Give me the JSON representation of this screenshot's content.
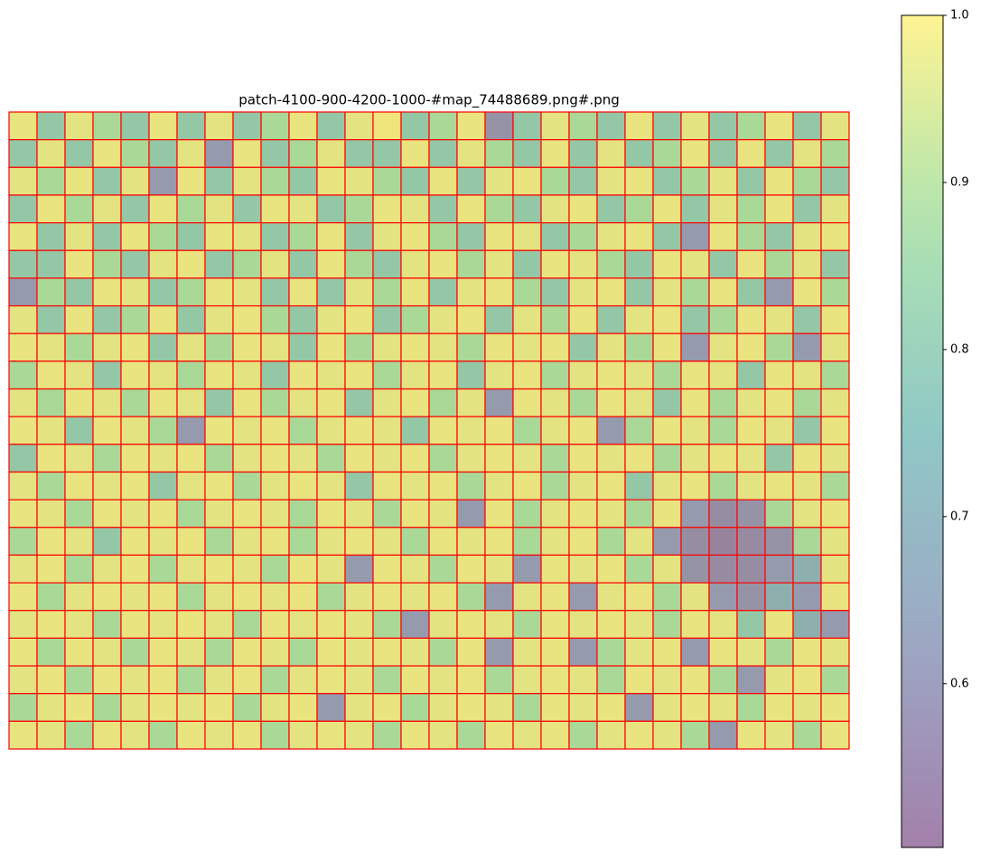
{
  "chart_data": {
    "type": "heatmap",
    "title": "patch-4100-900-4200-1000-#map_74488689.png#.png",
    "colormap": "viridis",
    "alpha": 0.5,
    "cell_edge_color": "#ff0000",
    "clim": [
      0.502,
      1.0
    ],
    "cticks": [
      0.6,
      0.7,
      0.8,
      0.9,
      {
        "value": 1.0,
        "label": "1.0"
      }
    ],
    "values": [
      [
        0.98,
        0.8,
        0.97,
        0.88,
        0.8,
        0.98,
        0.8,
        0.97,
        0.8,
        0.88,
        0.98,
        0.8,
        0.97,
        0.99,
        0.8,
        0.88,
        0.98,
        0.6,
        0.8,
        0.97,
        0.88,
        0.8,
        0.98,
        0.8,
        0.97,
        0.8,
        0.88,
        0.98,
        0.8,
        0.97
      ],
      [
        0.8,
        0.97,
        0.8,
        0.98,
        0.88,
        0.8,
        0.97,
        0.62,
        0.98,
        0.8,
        0.88,
        0.97,
        0.8,
        0.8,
        0.98,
        0.8,
        0.97,
        0.88,
        0.8,
        0.98,
        0.8,
        0.97,
        0.8,
        0.88,
        0.98,
        0.8,
        0.98,
        0.8,
        0.97,
        0.88
      ],
      [
        0.97,
        0.88,
        0.98,
        0.8,
        0.97,
        0.62,
        0.98,
        0.8,
        0.97,
        0.88,
        0.8,
        0.98,
        0.97,
        0.88,
        0.8,
        0.98,
        0.8,
        0.97,
        0.98,
        0.88,
        0.8,
        0.97,
        0.98,
        0.8,
        0.88,
        0.97,
        0.8,
        0.98,
        0.88,
        0.8
      ],
      [
        0.8,
        0.98,
        0.88,
        0.97,
        0.8,
        0.98,
        0.88,
        0.97,
        0.8,
        0.98,
        0.97,
        0.8,
        0.88,
        0.98,
        0.97,
        0.8,
        0.98,
        0.88,
        0.8,
        0.97,
        0.98,
        0.8,
        0.88,
        0.98,
        0.8,
        0.97,
        0.88,
        0.98,
        0.8,
        0.97
      ],
      [
        0.98,
        0.8,
        0.97,
        0.8,
        0.98,
        0.88,
        0.8,
        0.98,
        0.97,
        0.8,
        0.88,
        0.98,
        0.8,
        0.97,
        0.98,
        0.88,
        0.8,
        0.98,
        0.97,
        0.8,
        0.88,
        0.97,
        0.98,
        0.8,
        0.62,
        0.98,
        0.88,
        0.8,
        0.97,
        0.98
      ],
      [
        0.8,
        0.8,
        0.98,
        0.88,
        0.8,
        0.97,
        0.98,
        0.8,
        0.88,
        0.97,
        0.8,
        0.98,
        0.88,
        0.8,
        0.97,
        0.98,
        0.88,
        0.97,
        0.8,
        0.98,
        0.97,
        0.88,
        0.8,
        0.98,
        0.97,
        0.8,
        0.98,
        0.88,
        0.97,
        0.8
      ],
      [
        0.62,
        0.88,
        0.8,
        0.98,
        0.97,
        0.8,
        0.88,
        0.98,
        0.97,
        0.8,
        0.98,
        0.8,
        0.97,
        0.88,
        0.98,
        0.8,
        0.97,
        0.98,
        0.88,
        0.8,
        0.97,
        0.98,
        0.8,
        0.97,
        0.88,
        0.98,
        0.8,
        0.62,
        0.98,
        0.88
      ],
      [
        0.97,
        0.8,
        0.98,
        0.8,
        0.88,
        0.98,
        0.8,
        0.97,
        0.98,
        0.88,
        0.8,
        0.97,
        0.98,
        0.8,
        0.88,
        0.97,
        0.98,
        0.8,
        0.97,
        0.88,
        0.98,
        0.8,
        0.97,
        0.98,
        0.8,
        0.88,
        0.98,
        0.97,
        0.8,
        0.98
      ],
      [
        0.98,
        0.97,
        0.88,
        0.97,
        0.98,
        0.8,
        0.97,
        0.88,
        0.98,
        0.97,
        0.8,
        0.98,
        0.88,
        0.97,
        0.98,
        0.97,
        0.88,
        0.98,
        0.97,
        0.98,
        0.8,
        0.97,
        0.88,
        0.98,
        0.62,
        0.97,
        0.98,
        0.88,
        0.62,
        0.97
      ],
      [
        0.88,
        0.98,
        0.97,
        0.8,
        0.98,
        0.97,
        0.88,
        0.98,
        0.97,
        0.8,
        0.98,
        0.97,
        0.98,
        0.88,
        0.97,
        0.98,
        0.8,
        0.97,
        0.98,
        0.88,
        0.97,
        0.98,
        0.97,
        0.88,
        0.98,
        0.97,
        0.8,
        0.98,
        0.97,
        0.88
      ],
      [
        0.97,
        0.88,
        0.98,
        0.97,
        0.88,
        0.98,
        0.97,
        0.8,
        0.98,
        0.88,
        0.97,
        0.98,
        0.8,
        0.97,
        0.98,
        0.88,
        0.97,
        0.62,
        0.98,
        0.97,
        0.88,
        0.98,
        0.97,
        0.8,
        0.98,
        0.88,
        0.97,
        0.98,
        0.88,
        0.97
      ],
      [
        0.98,
        0.97,
        0.8,
        0.98,
        0.97,
        0.88,
        0.62,
        0.98,
        0.97,
        0.98,
        0.88,
        0.97,
        0.98,
        0.97,
        0.8,
        0.98,
        0.97,
        0.98,
        0.88,
        0.97,
        0.98,
        0.62,
        0.88,
        0.98,
        0.97,
        0.88,
        0.98,
        0.97,
        0.8,
        0.98
      ],
      [
        0.8,
        0.98,
        0.97,
        0.88,
        0.98,
        0.97,
        0.98,
        0.88,
        0.97,
        0.98,
        0.97,
        0.88,
        0.98,
        0.97,
        0.98,
        0.88,
        0.97,
        0.98,
        0.97,
        0.88,
        0.98,
        0.97,
        0.98,
        0.88,
        0.97,
        0.98,
        0.97,
        0.8,
        0.98,
        0.97
      ],
      [
        0.97,
        0.88,
        0.98,
        0.97,
        0.98,
        0.8,
        0.97,
        0.98,
        0.88,
        0.97,
        0.98,
        0.97,
        0.8,
        0.98,
        0.97,
        0.98,
        0.88,
        0.97,
        0.98,
        0.88,
        0.97,
        0.98,
        0.8,
        0.97,
        0.98,
        0.88,
        0.97,
        0.98,
        0.97,
        0.88
      ],
      [
        0.98,
        0.97,
        0.88,
        0.98,
        0.97,
        0.98,
        0.88,
        0.97,
        0.98,
        0.97,
        0.88,
        0.98,
        0.97,
        0.88,
        0.98,
        0.97,
        0.62,
        0.98,
        0.88,
        0.97,
        0.98,
        0.97,
        0.88,
        0.98,
        0.62,
        0.58,
        0.6,
        0.88,
        0.97,
        0.98
      ],
      [
        0.88,
        0.98,
        0.97,
        0.8,
        0.98,
        0.97,
        0.98,
        0.88,
        0.97,
        0.98,
        0.88,
        0.97,
        0.98,
        0.97,
        0.88,
        0.98,
        0.97,
        0.98,
        0.88,
        0.97,
        0.98,
        0.88,
        0.97,
        0.62,
        0.58,
        0.55,
        0.57,
        0.6,
        0.88,
        0.97
      ],
      [
        0.97,
        0.98,
        0.88,
        0.97,
        0.98,
        0.88,
        0.97,
        0.98,
        0.97,
        0.88,
        0.98,
        0.97,
        0.62,
        0.98,
        0.97,
        0.88,
        0.98,
        0.97,
        0.62,
        0.98,
        0.97,
        0.98,
        0.88,
        0.97,
        0.6,
        0.57,
        0.58,
        0.62,
        0.7,
        0.97
      ],
      [
        0.98,
        0.88,
        0.97,
        0.98,
        0.97,
        0.98,
        0.88,
        0.97,
        0.98,
        0.97,
        0.98,
        0.88,
        0.97,
        0.98,
        0.97,
        0.98,
        0.88,
        0.62,
        0.97,
        0.98,
        0.62,
        0.97,
        0.98,
        0.88,
        0.97,
        0.62,
        0.6,
        0.7,
        0.62,
        0.98
      ],
      [
        0.97,
        0.98,
        0.97,
        0.88,
        0.98,
        0.97,
        0.98,
        0.97,
        0.88,
        0.98,
        0.97,
        0.98,
        0.97,
        0.88,
        0.62,
        0.97,
        0.98,
        0.97,
        0.88,
        0.98,
        0.97,
        0.98,
        0.97,
        0.88,
        0.98,
        0.97,
        0.8,
        0.98,
        0.7,
        0.62
      ],
      [
        0.98,
        0.88,
        0.98,
        0.97,
        0.88,
        0.98,
        0.97,
        0.88,
        0.98,
        0.97,
        0.88,
        0.98,
        0.97,
        0.98,
        0.97,
        0.88,
        0.98,
        0.62,
        0.97,
        0.98,
        0.62,
        0.88,
        0.97,
        0.98,
        0.62,
        0.98,
        0.97,
        0.88,
        0.98,
        0.97
      ],
      [
        0.97,
        0.98,
        0.88,
        0.98,
        0.97,
        0.98,
        0.88,
        0.97,
        0.98,
        0.88,
        0.97,
        0.98,
        0.97,
        0.88,
        0.98,
        0.97,
        0.98,
        0.88,
        0.97,
        0.98,
        0.97,
        0.88,
        0.98,
        0.97,
        0.98,
        0.88,
        0.62,
        0.97,
        0.98,
        0.88
      ],
      [
        0.88,
        0.97,
        0.98,
        0.88,
        0.97,
        0.98,
        0.97,
        0.98,
        0.88,
        0.97,
        0.98,
        0.62,
        0.97,
        0.98,
        0.88,
        0.97,
        0.98,
        0.97,
        0.88,
        0.98,
        0.97,
        0.98,
        0.62,
        0.97,
        0.98,
        0.97,
        0.88,
        0.98,
        0.97,
        0.98
      ],
      [
        0.98,
        0.97,
        0.88,
        0.98,
        0.97,
        0.88,
        0.98,
        0.97,
        0.98,
        0.88,
        0.97,
        0.98,
        0.97,
        0.88,
        0.98,
        0.97,
        0.88,
        0.98,
        0.97,
        0.98,
        0.88,
        0.97,
        0.98,
        0.97,
        0.88,
        0.62,
        0.98,
        0.97,
        0.88,
        0.98
      ]
    ]
  }
}
